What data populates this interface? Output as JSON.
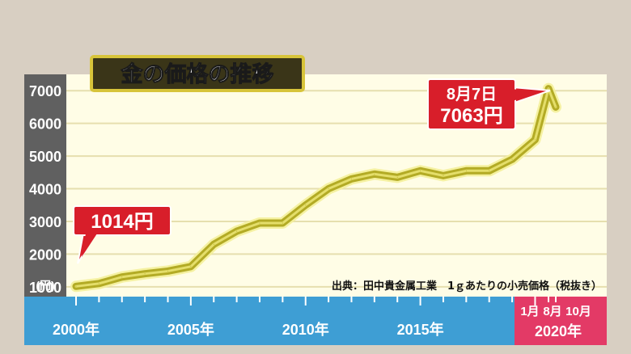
{
  "chart_data": {
    "type": "line",
    "title": "金の価格の推移",
    "unit": "(円)",
    "yticks": [
      1000,
      2000,
      3000,
      4000,
      5000,
      6000,
      7000
    ],
    "ylim": [
      700,
      7500
    ],
    "xlim": [
      2000,
      2020.9
    ],
    "xticks": [
      {
        "x": 2000,
        "label": "2000年"
      },
      {
        "x": 2005,
        "label": "2005年"
      },
      {
        "x": 2010,
        "label": "2010年"
      },
      {
        "x": 2015,
        "label": "2015年"
      }
    ],
    "x2020": {
      "months": [
        "1月",
        "8月",
        "10月"
      ],
      "year": "2020年"
    },
    "source": "出典：田中貴金属工業　1ｇあたりの小売価格（税抜き）",
    "series": [
      {
        "points": [
          [
            2000,
            1014
          ],
          [
            2001,
            1100
          ],
          [
            2002,
            1300
          ],
          [
            2003,
            1400
          ],
          [
            2004,
            1480
          ],
          [
            2005,
            1620
          ],
          [
            2006,
            2300
          ],
          [
            2007,
            2700
          ],
          [
            2008,
            2950
          ],
          [
            2009,
            2950
          ],
          [
            2010,
            3500
          ],
          [
            2011,
            4000
          ],
          [
            2012,
            4300
          ],
          [
            2013,
            4450
          ],
          [
            2014,
            4350
          ],
          [
            2015,
            4550
          ],
          [
            2016,
            4400
          ],
          [
            2017,
            4550
          ],
          [
            2018,
            4550
          ],
          [
            2019,
            4900
          ],
          [
            2020,
            5500
          ],
          [
            2020.583,
            7063
          ],
          [
            2020.9,
            6500
          ]
        ]
      }
    ],
    "annotations": [
      {
        "x": 2000,
        "y": 1014,
        "text": "1014円"
      },
      {
        "x": 2020.583,
        "y": 7063,
        "line1": "8月7日",
        "line2": "7063円"
      }
    ]
  },
  "colors": {
    "background": "#d8cfc2",
    "plot": "#fffde6",
    "grid": "#e6dfae",
    "line": "#b3ab25",
    "line_glow": "#f4f099",
    "axis_left": "#606060",
    "axis_bottom": "#3e9ed4",
    "highlight": "#e33a66",
    "callout": "#d81e2a"
  }
}
